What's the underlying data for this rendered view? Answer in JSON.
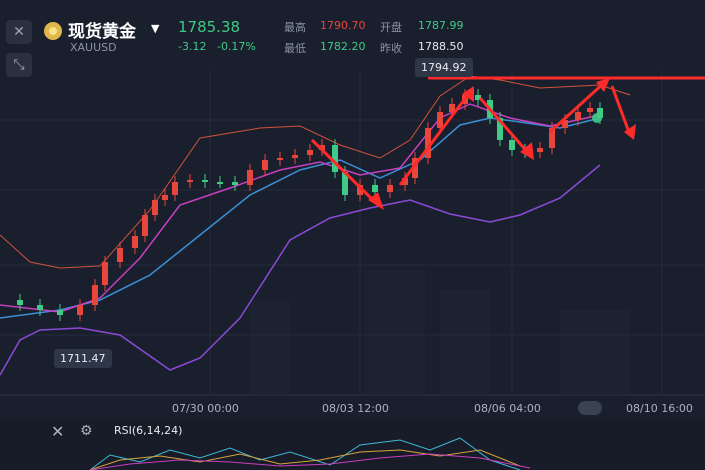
{
  "header": {
    "title": "现货黄金",
    "symbol": "XAUUSD",
    "price": "1785.38",
    "change": "-3.12",
    "change_pct": "-0.17%",
    "high_label": "最高",
    "high_value": "1790.70",
    "low_label": "最低",
    "low_value": "1782.20",
    "open_label": "开盘",
    "open_value": "1787.99",
    "prev_label": "昨收",
    "prev_value": "1788.50",
    "icons": {
      "close": "close-icon",
      "shrink": "shrink-icon",
      "dropdown": "chevron-down-icon"
    }
  },
  "chart": {
    "max_label": "1794.92",
    "min_label": "1711.47",
    "x_labels": [
      "07/30 00:00",
      "08/03 12:00",
      "08/06 04:00",
      "08/10 16:00"
    ]
  },
  "rsi": {
    "label": "RSI(6,14,24)",
    "icons": [
      "close-icon",
      "settings-icon"
    ]
  },
  "colors": {
    "up": "#e8453c",
    "down": "#3fca86",
    "bg": "#1a1f2d",
    "annotation": "#ff2a2a"
  },
  "chart_data": {
    "type": "candlestick",
    "symbol": "XAUUSD",
    "x_ticks": [
      "07/30 00:00",
      "08/03 12:00",
      "08/06 04:00",
      "08/10 16:00"
    ],
    "marked_high": 1794.92,
    "marked_low": 1711.47,
    "last": 1785.38,
    "indicators": [
      "bollinger",
      "moving-averages",
      "RSI(6,14,24)"
    ]
  }
}
